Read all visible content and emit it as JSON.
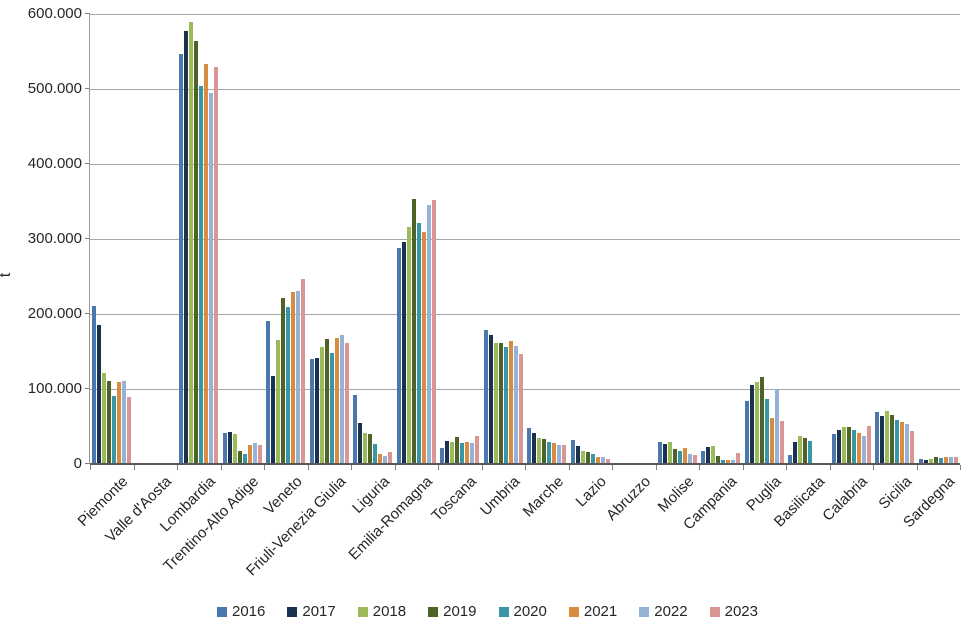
{
  "chart_data": {
    "type": "bar",
    "title": "",
    "ylabel": "t",
    "xlabel": "",
    "ylim": [
      0,
      600000
    ],
    "ytick_step": 100000,
    "ytick_labels": [
      "0",
      "100.000",
      "200.000",
      "300.000",
      "400.000",
      "500.000",
      "600.000"
    ],
    "grid": true,
    "legend_position": "bottom",
    "categories": [
      "Piemonte",
      "Valle d'Aosta",
      "Lombardia",
      "Trentino-Alto Adige",
      "Veneto",
      "Friuli-Venezia Giulia",
      "Liguria",
      "Emilia-Romagna",
      "Toscana",
      "Umbria",
      "Marche",
      "Lazio",
      "Abruzzo",
      "Molise",
      "Campania",
      "Puglia",
      "Basilicata",
      "Calabria",
      "Sicilia",
      "Sardegna"
    ],
    "series": [
      {
        "name": "2016",
        "color": "#4A78AD",
        "values": [
          211000,
          1500,
          547000,
          41000,
          191000,
          140000,
          92000,
          288000,
          22000,
          179000,
          48000,
          32000,
          2000,
          30000,
          18000,
          84000,
          12000,
          40000,
          69000,
          7000
        ]
      },
      {
        "name": "2017",
        "color": "#1B3150",
        "values": [
          186000,
          1500,
          577000,
          43000,
          117000,
          141000,
          55000,
          296000,
          31000,
          172000,
          41000,
          24000,
          2000,
          27000,
          23000,
          105000,
          30000,
          45000,
          64000,
          6000
        ]
      },
      {
        "name": "2018",
        "color": "#9BBB59",
        "values": [
          121000,
          1000,
          589000,
          40000,
          165000,
          156000,
          41000,
          316000,
          30000,
          162000,
          35000,
          18000,
          2000,
          29000,
          24000,
          109000,
          37000,
          50000,
          71000,
          7000
        ]
      },
      {
        "name": "2019",
        "color": "#4F6228",
        "values": [
          111000,
          1000,
          564000,
          17000,
          222000,
          167000,
          40000,
          354000,
          36000,
          161000,
          34000,
          16000,
          2000,
          20000,
          11000,
          116000,
          35000,
          49000,
          66000,
          9000
        ]
      },
      {
        "name": "2020",
        "color": "#3797A7",
        "values": [
          91000,
          1000,
          504000,
          14000,
          210000,
          148000,
          27000,
          322000,
          28000,
          156000,
          29000,
          14000,
          1000,
          17000,
          6000,
          87000,
          31000,
          46000,
          59000,
          8000
        ]
      },
      {
        "name": "2021",
        "color": "#D98C3F",
        "values": [
          110000,
          1000,
          534000,
          26000,
          230000,
          168000,
          14000,
          309000,
          29000,
          164000,
          28000,
          9000,
          1000,
          21000,
          5000,
          61000,
          1000,
          42000,
          56000,
          10000
        ]
      },
      {
        "name": "2022",
        "color": "#95B3D7",
        "values": [
          111000,
          1000,
          495000,
          28000,
          231000,
          172000,
          11000,
          345000,
          28000,
          158000,
          26000,
          9000,
          1000,
          13000,
          5000,
          100000,
          1000,
          37000,
          53000,
          10000
        ]
      },
      {
        "name": "2023",
        "color": "#D99694",
        "values": [
          90000,
          1000,
          529000,
          25000,
          247000,
          162000,
          16000,
          352000,
          38000,
          147000,
          25000,
          7000,
          1000,
          12000,
          15000,
          58000,
          1000,
          51000,
          44000,
          9000
        ]
      }
    ]
  }
}
